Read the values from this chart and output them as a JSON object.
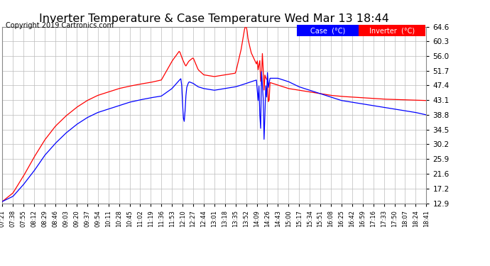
{
  "title": "Inverter Temperature & Case Temperature Wed Mar 13 18:44",
  "copyright": "Copyright 2019 Cartronics.com",
  "legend_case_label": "Case  (°C)",
  "legend_inverter_label": "Inverter  (°C)",
  "legend_case_bg": "#0000ff",
  "legend_inverter_bg": "#ff0000",
  "legend_text_color": "#ffffff",
  "yticks": [
    12.9,
    17.2,
    21.6,
    25.9,
    30.2,
    34.5,
    38.8,
    43.1,
    47.4,
    51.7,
    56.0,
    60.3,
    64.6
  ],
  "ymin": 12.9,
  "ymax": 64.6,
  "background_color": "#ffffff",
  "plot_bg_color": "#ffffff",
  "grid_color": "#bbbbbb",
  "case_color": "#0000ff",
  "inverter_color": "#ff0000",
  "title_fontsize": 11.5,
  "copyright_fontsize": 7,
  "xtick_fontsize": 6,
  "ytick_fontsize": 7.5,
  "xtick_labels": [
    "07:21",
    "07:38",
    "07:55",
    "08:12",
    "08:29",
    "08:46",
    "09:03",
    "09:20",
    "09:37",
    "09:54",
    "10:11",
    "10:28",
    "10:45",
    "11:02",
    "11:19",
    "11:36",
    "11:53",
    "12:10",
    "12:27",
    "12:44",
    "13:01",
    "13:18",
    "13:35",
    "13:52",
    "14:09",
    "14:26",
    "14:43",
    "15:00",
    "15:17",
    "15:34",
    "15:51",
    "16:08",
    "16:25",
    "16:42",
    "16:59",
    "17:16",
    "17:33",
    "17:50",
    "18:07",
    "18:24",
    "18:41"
  ]
}
